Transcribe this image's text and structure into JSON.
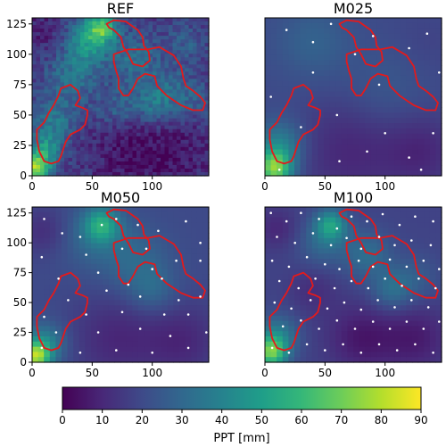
{
  "chart_data": [
    {
      "type": "heatmap",
      "title": "REF",
      "xlim": [
        0,
        147
      ],
      "ylim": [
        0,
        130
      ],
      "xticks": [
        "0",
        "50",
        "100"
      ],
      "yticks": [
        "0",
        "25",
        "50",
        "75",
        "100",
        "125"
      ],
      "stations": [],
      "hotspots": [
        {
          "x": 3,
          "y": 5,
          "v": 72,
          "r": 8
        },
        {
          "x": 10,
          "y": 20,
          "v": 45,
          "r": 10
        },
        {
          "x": 18,
          "y": 42,
          "v": 35,
          "r": 12
        },
        {
          "x": 50,
          "y": 118,
          "v": 45,
          "r": 12
        },
        {
          "x": 60,
          "y": 122,
          "v": 48,
          "r": 8
        },
        {
          "x": 42,
          "y": 100,
          "v": 32,
          "r": 14
        },
        {
          "x": 30,
          "y": 75,
          "v": 30,
          "r": 16
        },
        {
          "x": 85,
          "y": 95,
          "v": 32,
          "r": 16
        },
        {
          "x": 100,
          "y": 58,
          "v": 32,
          "r": 12
        },
        {
          "x": 115,
          "y": 70,
          "v": 28,
          "r": 14
        },
        {
          "x": 135,
          "y": 60,
          "v": 25,
          "r": 12
        },
        {
          "x": 70,
          "y": 55,
          "v": 28,
          "r": 12
        },
        {
          "x": 130,
          "y": 110,
          "v": 25,
          "r": 12
        },
        {
          "x": 80,
          "y": 20,
          "v": 5,
          "r": 22
        },
        {
          "x": 120,
          "y": 20,
          "v": 6,
          "r": 22
        },
        {
          "x": 10,
          "y": 118,
          "v": 8,
          "r": 14
        }
      ],
      "base_value": 15,
      "noise": true
    },
    {
      "type": "heatmap",
      "title": "M025",
      "xlim": [
        0,
        147
      ],
      "ylim": [
        0,
        130
      ],
      "xticks": [
        "0",
        "50",
        "100"
      ],
      "yticks": [],
      "stations": [
        [
          12,
          5
        ],
        [
          18,
          120
        ],
        [
          40,
          110
        ],
        [
          55,
          125
        ],
        [
          75,
          100
        ],
        [
          90,
          115
        ],
        [
          120,
          105
        ],
        [
          135,
          117
        ],
        [
          5,
          65
        ],
        [
          30,
          40
        ],
        [
          60,
          50
        ],
        [
          100,
          35
        ],
        [
          140,
          35
        ],
        [
          62,
          12
        ],
        [
          85,
          20
        ],
        [
          120,
          15
        ],
        [
          130,
          5
        ],
        [
          40,
          85
        ],
        [
          95,
          75
        ],
        [
          145,
          85
        ]
      ],
      "hotspots": [
        {
          "x": 8,
          "y": 6,
          "v": 70,
          "r": 10
        },
        {
          "x": 12,
          "y": 25,
          "v": 40,
          "r": 14
        },
        {
          "x": 40,
          "y": 110,
          "v": 28,
          "r": 22
        },
        {
          "x": 100,
          "y": 70,
          "v": 25,
          "r": 24
        },
        {
          "x": 70,
          "y": 20,
          "v": 10,
          "r": 30
        },
        {
          "x": 130,
          "y": 20,
          "v": 10,
          "r": 22
        },
        {
          "x": 135,
          "y": 110,
          "v": 18,
          "r": 20
        }
      ],
      "base_value": 20,
      "noise": false
    },
    {
      "type": "heatmap",
      "title": "M050",
      "xlim": [
        0,
        147
      ],
      "ylim": [
        0,
        130
      ],
      "xticks": [
        "0",
        "50",
        "100"
      ],
      "yticks": [
        "0",
        "25",
        "50",
        "75",
        "100",
        "125"
      ],
      "stations": [
        [
          10,
          120
        ],
        [
          25,
          108
        ],
        [
          40,
          105
        ],
        [
          58,
          115
        ],
        [
          70,
          120
        ],
        [
          88,
          115
        ],
        [
          105,
          110
        ],
        [
          128,
          118
        ],
        [
          140,
          100
        ],
        [
          8,
          88
        ],
        [
          45,
          90
        ],
        [
          75,
          95
        ],
        [
          95,
          95
        ],
        [
          120,
          85
        ],
        [
          140,
          85
        ],
        [
          22,
          70
        ],
        [
          55,
          75
        ],
        [
          80,
          65
        ],
        [
          100,
          78
        ],
        [
          30,
          52
        ],
        [
          62,
          60
        ],
        [
          90,
          55
        ],
        [
          122,
          52
        ],
        [
          140,
          55
        ],
        [
          10,
          38
        ],
        [
          45,
          40
        ],
        [
          75,
          42
        ],
        [
          110,
          40
        ],
        [
          130,
          40
        ],
        [
          20,
          25
        ],
        [
          55,
          25
        ],
        [
          90,
          28
        ],
        [
          115,
          22
        ],
        [
          8,
          12
        ],
        [
          40,
          8
        ],
        [
          70,
          10
        ],
        [
          100,
          8
        ],
        [
          130,
          12
        ],
        [
          145,
          25
        ],
        [
          108,
          70
        ]
      ],
      "hotspots": [
        {
          "x": 3,
          "y": 5,
          "v": 70,
          "r": 8
        },
        {
          "x": 10,
          "y": 15,
          "v": 42,
          "r": 12
        },
        {
          "x": 58,
          "y": 115,
          "v": 50,
          "r": 10
        },
        {
          "x": 50,
          "y": 105,
          "v": 30,
          "r": 18
        },
        {
          "x": 85,
          "y": 85,
          "v": 30,
          "r": 20
        },
        {
          "x": 100,
          "y": 60,
          "v": 30,
          "r": 14
        },
        {
          "x": 70,
          "y": 20,
          "v": 10,
          "r": 26
        },
        {
          "x": 125,
          "y": 18,
          "v": 10,
          "r": 22
        },
        {
          "x": 10,
          "y": 110,
          "v": 12,
          "r": 14
        }
      ],
      "base_value": 20,
      "noise": false
    },
    {
      "type": "heatmap",
      "title": "M100",
      "xlim": [
        0,
        147
      ],
      "ylim": [
        0,
        130
      ],
      "xticks": [
        "0",
        "50",
        "100"
      ],
      "yticks": [],
      "stations": [
        [
          5,
          125
        ],
        [
          18,
          118
        ],
        [
          30,
          125
        ],
        [
          45,
          120
        ],
        [
          60,
          112
        ],
        [
          72,
          122
        ],
        [
          85,
          118
        ],
        [
          98,
          124
        ],
        [
          112,
          115
        ],
        [
          125,
          122
        ],
        [
          140,
          118
        ],
        [
          10,
          105
        ],
        [
          25,
          100
        ],
        [
          40,
          108
        ],
        [
          55,
          98
        ],
        [
          68,
          104
        ],
        [
          80,
          95
        ],
        [
          95,
          105
        ],
        [
          108,
          98
        ],
        [
          122,
          102
        ],
        [
          138,
          98
        ],
        [
          6,
          85
        ],
        [
          20,
          80
        ],
        [
          35,
          88
        ],
        [
          50,
          82
        ],
        [
          62,
          78
        ],
        [
          78,
          85
        ],
        [
          90,
          80
        ],
        [
          104,
          86
        ],
        [
          118,
          80
        ],
        [
          132,
          85
        ],
        [
          145,
          78
        ],
        [
          12,
          68
        ],
        [
          28,
          62
        ],
        [
          42,
          70
        ],
        [
          58,
          62
        ],
        [
          72,
          68
        ],
        [
          86,
          62
        ],
        [
          100,
          70
        ],
        [
          114,
          64
        ],
        [
          128,
          70
        ],
        [
          142,
          62
        ],
        [
          8,
          50
        ],
        [
          22,
          45
        ],
        [
          38,
          52
        ],
        [
          52,
          45
        ],
        [
          66,
          50
        ],
        [
          80,
          44
        ],
        [
          94,
          52
        ],
        [
          108,
          46
        ],
        [
          122,
          52
        ],
        [
          136,
          46
        ],
        [
          15,
          30
        ],
        [
          30,
          35
        ],
        [
          45,
          28
        ],
        [
          60,
          35
        ],
        [
          75,
          28
        ],
        [
          90,
          34
        ],
        [
          104,
          28
        ],
        [
          118,
          34
        ],
        [
          132,
          28
        ],
        [
          145,
          34
        ],
        [
          6,
          12
        ],
        [
          20,
          8
        ],
        [
          35,
          15
        ],
        [
          50,
          10
        ],
        [
          65,
          15
        ],
        [
          80,
          8
        ],
        [
          95,
          15
        ],
        [
          110,
          10
        ],
        [
          125,
          15
        ],
        [
          140,
          8
        ]
      ],
      "hotspots": [
        {
          "x": 5,
          "y": 8,
          "v": 65,
          "r": 9
        },
        {
          "x": 10,
          "y": 22,
          "v": 38,
          "r": 12
        },
        {
          "x": 55,
          "y": 115,
          "v": 48,
          "r": 9
        },
        {
          "x": 48,
          "y": 100,
          "v": 30,
          "r": 14
        },
        {
          "x": 85,
          "y": 90,
          "v": 32,
          "r": 14
        },
        {
          "x": 105,
          "y": 60,
          "v": 32,
          "r": 12
        },
        {
          "x": 125,
          "y": 70,
          "v": 26,
          "r": 14
        },
        {
          "x": 80,
          "y": 20,
          "v": 6,
          "r": 20
        },
        {
          "x": 125,
          "y": 20,
          "v": 7,
          "r": 20
        },
        {
          "x": 10,
          "y": 112,
          "v": 10,
          "r": 12
        },
        {
          "x": 40,
          "y": 60,
          "v": 12,
          "r": 14
        }
      ],
      "base_value": 18,
      "noise": false
    }
  ],
  "regions": [
    [
      [
        62,
        125
      ],
      [
        68,
        128
      ],
      [
        78,
        127
      ],
      [
        88,
        120
      ],
      [
        92,
        114
      ],
      [
        93,
        107
      ],
      [
        97,
        102
      ],
      [
        98,
        95
      ],
      [
        92,
        90
      ],
      [
        84,
        92
      ],
      [
        80,
        100
      ],
      [
        76,
        106
      ],
      [
        74,
        114
      ],
      [
        68,
        120
      ],
      [
        64,
        122
      ]
    ],
    [
      [
        68,
        100
      ],
      [
        80,
        104
      ],
      [
        96,
        104
      ],
      [
        106,
        106
      ],
      [
        118,
        99
      ],
      [
        124,
        90
      ],
      [
        126,
        80
      ],
      [
        128,
        74
      ],
      [
        134,
        70
      ],
      [
        140,
        65
      ],
      [
        144,
        60
      ],
      [
        142,
        54
      ],
      [
        134,
        54
      ],
      [
        124,
        58
      ],
      [
        118,
        62
      ],
      [
        112,
        66
      ],
      [
        104,
        74
      ],
      [
        102,
        82
      ],
      [
        94,
        84
      ],
      [
        88,
        80
      ],
      [
        84,
        72
      ],
      [
        80,
        66
      ],
      [
        76,
        66
      ],
      [
        72,
        72
      ],
      [
        72,
        80
      ],
      [
        70,
        86
      ],
      [
        68,
        94
      ]
    ],
    [
      [
        24,
        72
      ],
      [
        32,
        75
      ],
      [
        38,
        70
      ],
      [
        40,
        64
      ],
      [
        36,
        58
      ],
      [
        42,
        56
      ],
      [
        46,
        54
      ],
      [
        46,
        50
      ],
      [
        44,
        42
      ],
      [
        40,
        38
      ],
      [
        32,
        34
      ],
      [
        28,
        28
      ],
      [
        26,
        22
      ],
      [
        24,
        16
      ],
      [
        22,
        12
      ],
      [
        16,
        10
      ],
      [
        10,
        12
      ],
      [
        6,
        20
      ],
      [
        4,
        30
      ],
      [
        4,
        38
      ],
      [
        10,
        44
      ],
      [
        14,
        52
      ],
      [
        18,
        58
      ],
      [
        22,
        66
      ]
    ]
  ],
  "colorbar": {
    "label": "PPT [mm]",
    "min": 0,
    "max": 90,
    "ticks": [
      "0",
      "10",
      "20",
      "30",
      "40",
      "50",
      "60",
      "70",
      "80",
      "90"
    ]
  },
  "colors": {
    "region_outline": "#e31a1c",
    "station": "#ffffff",
    "colormap": "viridis"
  }
}
